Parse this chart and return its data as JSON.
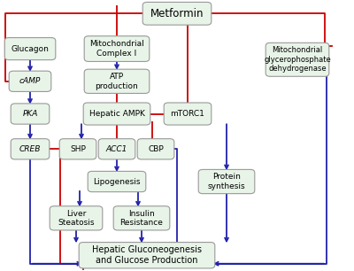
{
  "bg_color": "#ffffff",
  "box_fill": "#e8f4e8",
  "box_edge": "#999999",
  "blue": "#2222aa",
  "red": "#cc0000",
  "node_labels": {
    "Metformin": "Metformin",
    "MitComplexI": "Mitochondrial\nComplex I",
    "ATPprod": "ATP\nproduction",
    "HepaticAMPK": "Hepatic AMPK",
    "mTORC1": "mTORC1",
    "MitGlyc": "Mitochondrial\nglycerophosphate\ndehydrogenase",
    "Glucagon": "Glucagon",
    "cAMP": "cAMP",
    "PKA": "PKA",
    "CREB": "CREB",
    "SHP": "SHP",
    "ACC1": "ACC1",
    "CBP": "CBP",
    "Lipogenesis": "Lipogenesis",
    "LiverSteatosis": "Liver\nSteatosis",
    "InsulinResistance": "Insulin\nResistance",
    "ProteinSynthesis": "Protein\nsynthesis",
    "HepaticGluco": "Hepatic Gluconeogenesis\nand Glucose Production"
  },
  "italic_nodes": [
    "cAMP",
    "PKA",
    "CREB",
    "ACC1"
  ],
  "node_pos": {
    "Metformin": [
      0.5,
      0.95,
      0.17,
      0.06
    ],
    "MitComplexI": [
      0.33,
      0.82,
      0.16,
      0.07
    ],
    "ATPprod": [
      0.33,
      0.7,
      0.16,
      0.065
    ],
    "HepaticAMPK": [
      0.33,
      0.58,
      0.165,
      0.058
    ],
    "mTORC1": [
      0.53,
      0.58,
      0.11,
      0.058
    ],
    "MitGlyc": [
      0.84,
      0.78,
      0.155,
      0.1
    ],
    "Glucagon": [
      0.085,
      0.82,
      0.12,
      0.058
    ],
    "cAMP": [
      0.085,
      0.7,
      0.095,
      0.052
    ],
    "PKA": [
      0.085,
      0.58,
      0.085,
      0.052
    ],
    "CREB": [
      0.085,
      0.45,
      0.085,
      0.052
    ],
    "SHP": [
      0.22,
      0.45,
      0.08,
      0.052
    ],
    "ACC1": [
      0.33,
      0.45,
      0.08,
      0.052
    ],
    "CBP": [
      0.44,
      0.45,
      0.08,
      0.052
    ],
    "Lipogenesis": [
      0.33,
      0.33,
      0.14,
      0.052
    ],
    "LiverSteatosis": [
      0.215,
      0.195,
      0.125,
      0.065
    ],
    "InsulinResistance": [
      0.4,
      0.195,
      0.135,
      0.065
    ],
    "ProteinSynthesis": [
      0.64,
      0.33,
      0.135,
      0.065
    ],
    "HepaticGluco": [
      0.415,
      0.058,
      0.36,
      0.072
    ]
  }
}
